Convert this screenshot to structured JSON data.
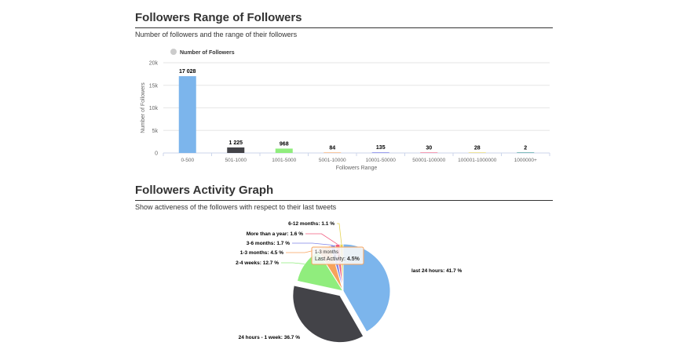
{
  "sections": {
    "range": {
      "title": "Followers Range of Followers",
      "subtitle": "Number of followers and the range of their followers"
    },
    "activity": {
      "title": "Followers Activity Graph",
      "subtitle": "Show activeness of the followers with respect to their last tweets"
    }
  },
  "chart_data": [
    {
      "type": "bar",
      "title": "Followers Range of Followers",
      "subtitle": "Number of followers and the range of their followers",
      "legend": {
        "label": "Number of Followers",
        "color": "#cccccc",
        "placement": "top-left"
      },
      "xlabel": "Followers Range",
      "ylabel": "Number of Followers",
      "ylim": [
        0,
        20000
      ],
      "yticks": [
        0,
        5000,
        10000,
        15000,
        20000
      ],
      "ytick_labels": [
        "0",
        "5k",
        "10k",
        "15k",
        "20k"
      ],
      "categories": [
        "0-500",
        "501-1000",
        "1001-5000",
        "5001-10000",
        "10001-50000",
        "50001-100000",
        "100001-1000000",
        "1000000+"
      ],
      "values": [
        17028,
        1225,
        968,
        84,
        135,
        30,
        28,
        2
      ],
      "value_labels": [
        "17 028",
        "1 225",
        "968",
        "84",
        "135",
        "30",
        "28",
        "2"
      ],
      "colors": [
        "#7cb5ec",
        "#434348",
        "#90ed7d",
        "#f7a35c",
        "#8085e9",
        "#f15c80",
        "#e4d354",
        "#2b908f"
      ]
    },
    {
      "type": "pie",
      "title": "Followers Activity Graph",
      "subtitle": "Show activeness of the followers with respect to their last tweets",
      "slices": [
        {
          "name": "last 24 hours",
          "label": "last 24 hours: 41.7 %",
          "value": 41.7,
          "color": "#7cb5ec"
        },
        {
          "name": "24 hours - 1 week",
          "label": "24 hours - 1 week: 36.7 %",
          "value": 36.7,
          "color": "#434348",
          "sliced": true
        },
        {
          "name": "2-4 weeks",
          "label": "2-4 weeks: 12.7 %",
          "value": 12.7,
          "color": "#90ed7d"
        },
        {
          "name": "1-3 months",
          "label": "1-3 months: 4.5 %",
          "value": 4.5,
          "color": "#f7a35c"
        },
        {
          "name": "3-6 months",
          "label": "3-6 months: 1.7 %",
          "value": 1.7,
          "color": "#8085e9"
        },
        {
          "name": "More than a year",
          "label": "More than a year: 1.6 %",
          "value": 1.6,
          "color": "#f15c80"
        },
        {
          "name": "6-12 months",
          "label": "6-12 months: 1.1 %",
          "value": 1.1,
          "color": "#e4d354"
        }
      ],
      "tooltip": {
        "title": "1-3 months",
        "series": "Last Activity",
        "value": "4.5%"
      }
    }
  ]
}
